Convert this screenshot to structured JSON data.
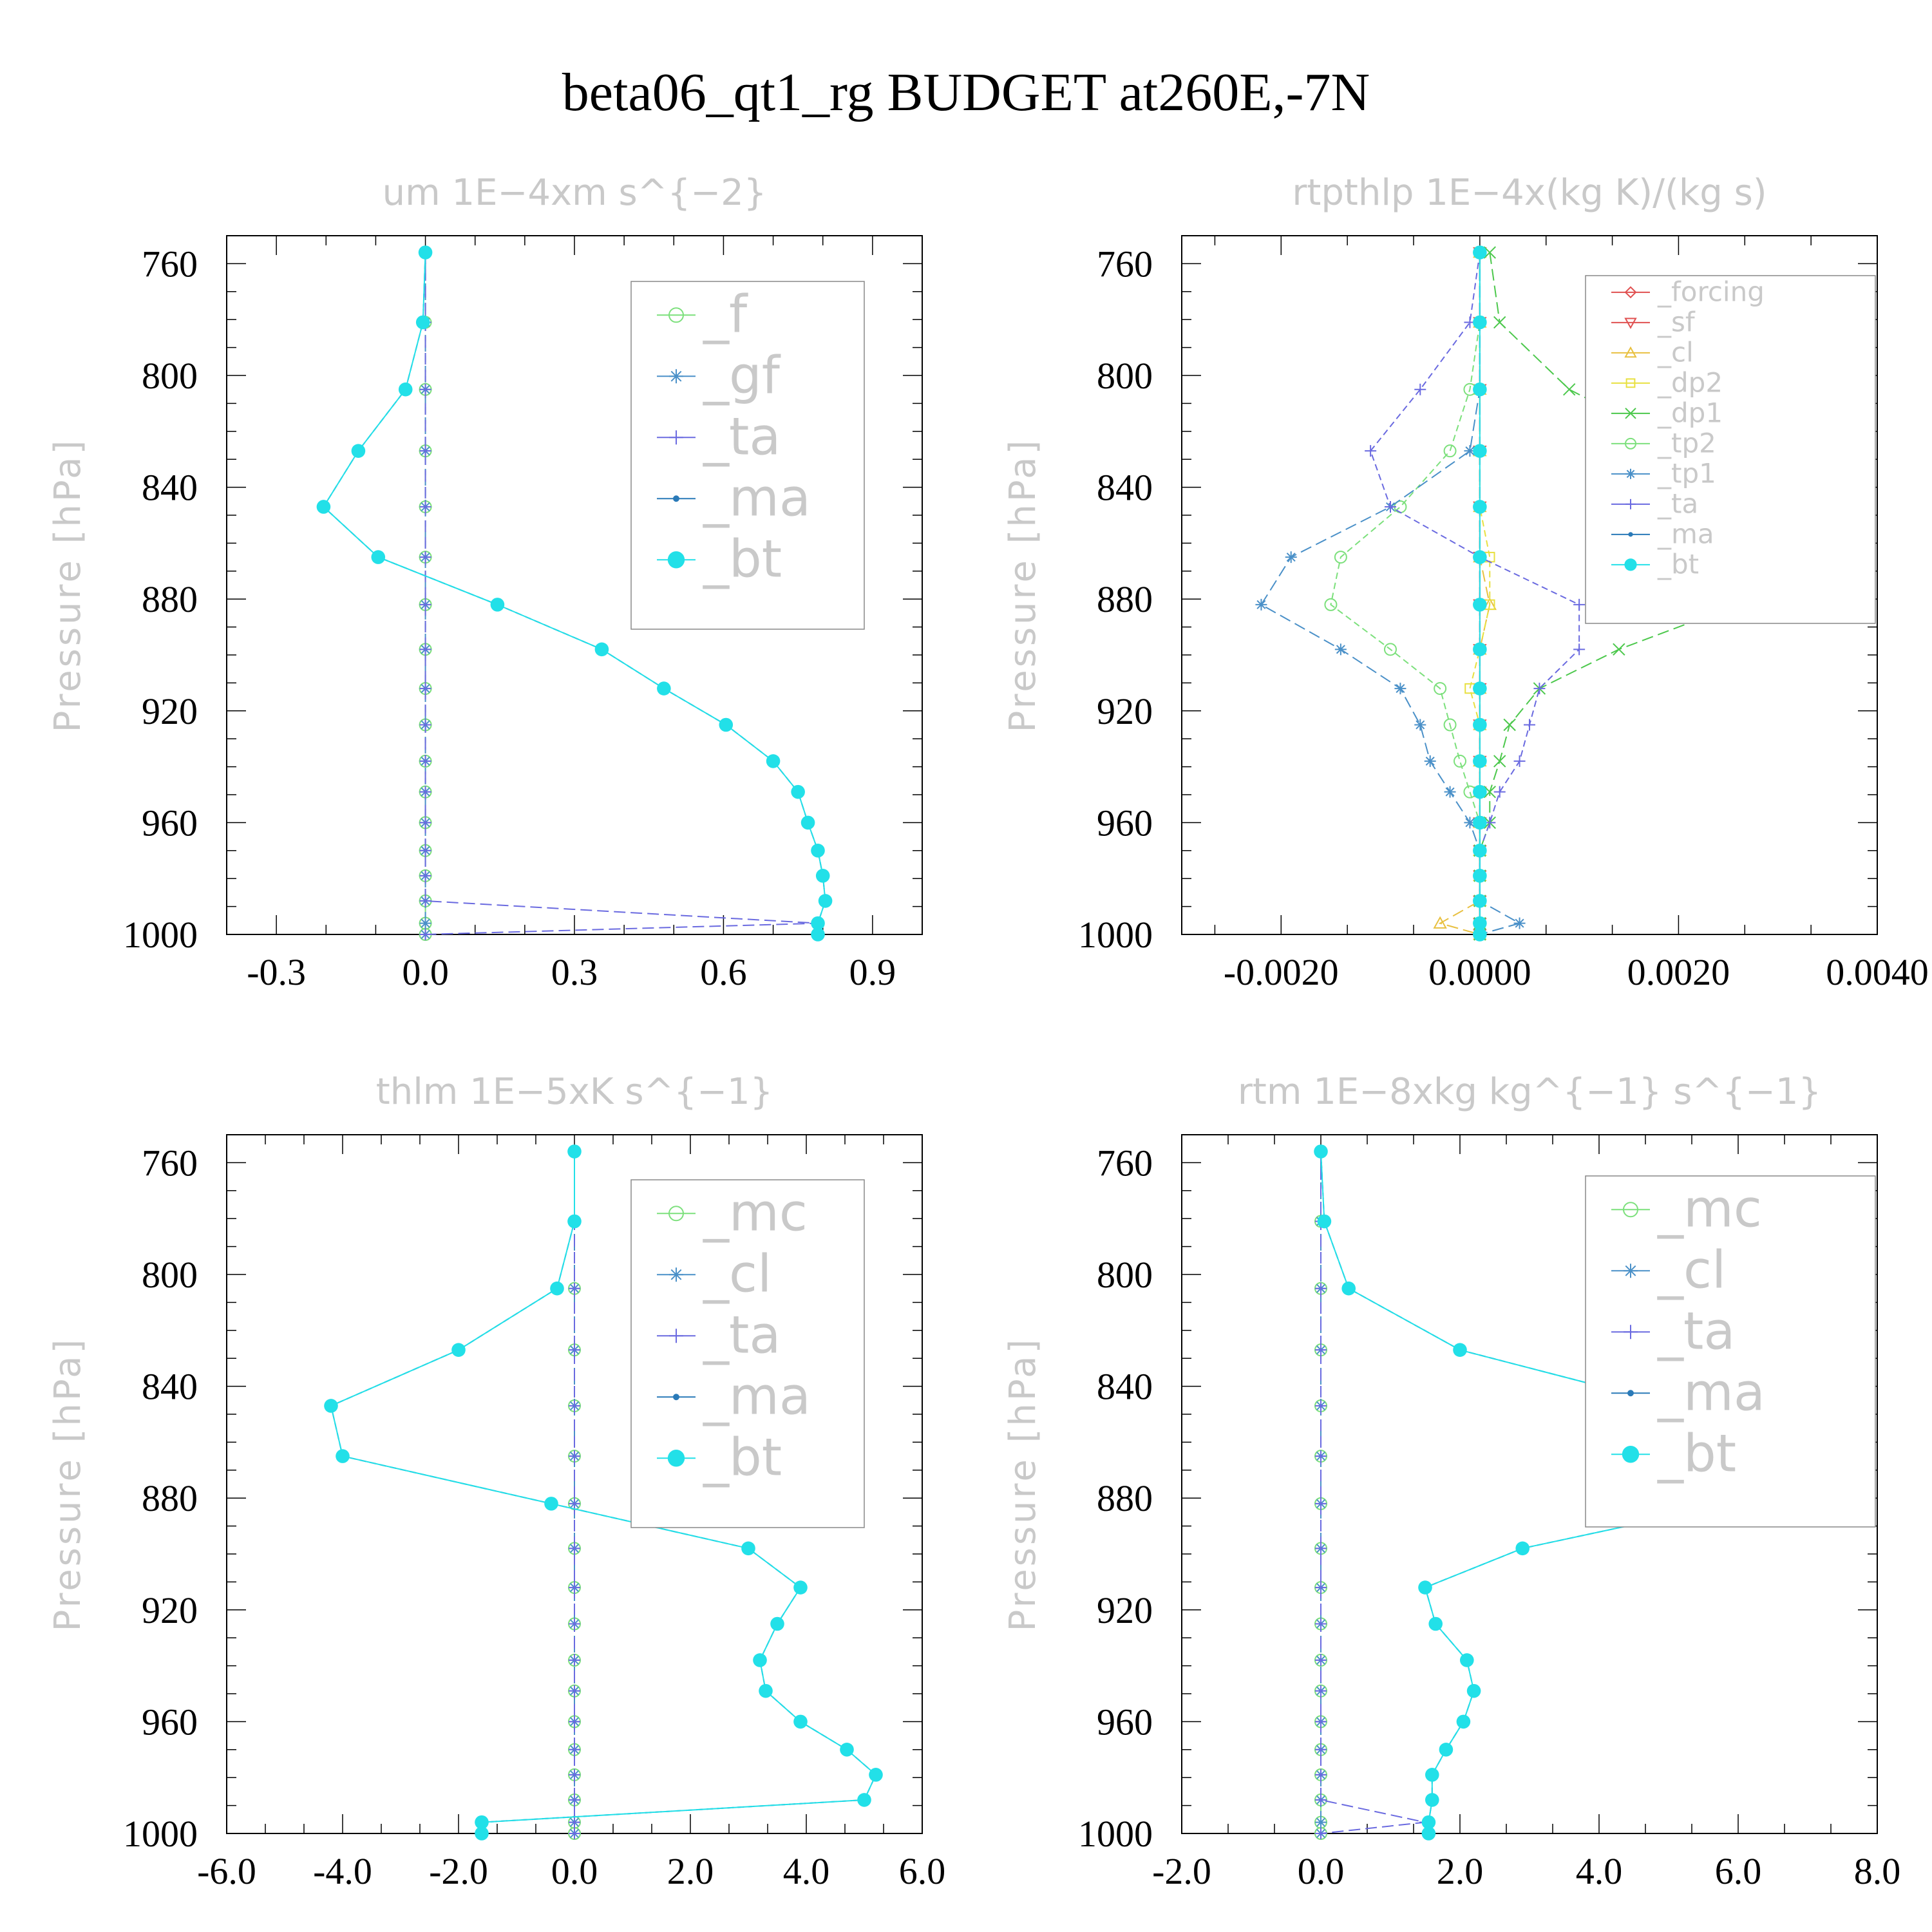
{
  "title": "beta06_qt1_rg  BUDGET at260E,-7N",
  "chart_data": [
    {
      "type": "line",
      "title": "um   1E−4xm s^{−2}",
      "ylabel": "Pressure [hPa]",
      "xlim": [
        -0.4,
        1.0
      ],
      "ylim": [
        1000,
        750
      ],
      "xticks": [
        -0.3,
        0.0,
        0.3,
        0.6,
        0.9
      ],
      "xtick_labels": [
        "-0.3",
        "0.0",
        "0.3",
        "0.6",
        "0.9"
      ],
      "yticks": [
        760,
        800,
        840,
        880,
        920,
        960,
        1000
      ],
      "ytick_labels": [
        "760",
        "800",
        "840",
        "880",
        "920",
        "960",
        "1000"
      ],
      "y": [
        756,
        781,
        805,
        827,
        847,
        865,
        882,
        898,
        912,
        925,
        938,
        949,
        960,
        970,
        979,
        988,
        996,
        1000
      ],
      "series": [
        {
          "name": "_f",
          "color": "#7ce07c",
          "marker": "circle",
          "values": [
            0,
            0,
            0,
            0,
            0,
            0,
            0,
            0,
            0,
            0,
            0,
            0,
            0,
            0,
            0,
            0,
            0,
            0
          ]
        },
        {
          "name": "_gf",
          "color": "#4a90c8",
          "marker": "star",
          "values": [
            0,
            0,
            0,
            0,
            0,
            0,
            0,
            0,
            0,
            0,
            0,
            0,
            0,
            0,
            0,
            0,
            0,
            0
          ]
        },
        {
          "name": "_ta",
          "color": "#6a6ae0",
          "marker": "plus",
          "values": [
            0,
            0,
            0,
            0,
            0,
            0,
            0,
            0,
            0,
            0,
            0,
            0,
            0,
            0,
            0,
            0,
            0.79,
            0
          ]
        },
        {
          "name": "_ma",
          "color": "#2a7ab8",
          "marker": "dot",
          "values": [
            0.0,
            -0.005,
            -0.04,
            -0.135,
            -0.205,
            -0.095,
            0.145,
            0.355,
            0.48,
            0.605,
            0.7,
            0.75,
            0.77,
            0.79,
            0.8,
            0.805,
            0.79,
            0.79
          ]
        },
        {
          "name": "_bt",
          "color": "#22e0e8",
          "marker": "filled",
          "values": [
            0.0,
            -0.005,
            -0.04,
            -0.135,
            -0.205,
            -0.095,
            0.145,
            0.355,
            0.48,
            0.605,
            0.7,
            0.75,
            0.77,
            0.79,
            0.8,
            0.805,
            0.79,
            0.79
          ]
        }
      ]
    },
    {
      "type": "line",
      "title": "rtpthlp   1E−4x(kg K)/(kg s)",
      "ylabel": "Pressure [hPa]",
      "xlim": [
        -0.003,
        0.004
      ],
      "ylim": [
        1000,
        750
      ],
      "xticks": [
        -0.002,
        0.0,
        0.002,
        0.004
      ],
      "xtick_labels": [
        "-0.0020",
        "0.0000",
        "0.0020",
        "0.0040"
      ],
      "yticks": [
        760,
        800,
        840,
        880,
        920,
        960,
        1000
      ],
      "ytick_labels": [
        "760",
        "800",
        "840",
        "880",
        "920",
        "960",
        "1000"
      ],
      "y": [
        756,
        781,
        805,
        827,
        847,
        865,
        882,
        898,
        912,
        925,
        938,
        949,
        960,
        970,
        979,
        988,
        996,
        1000
      ],
      "series": [
        {
          "name": "_forcing",
          "color": "#e05050",
          "marker": "diamond",
          "values": [
            0,
            0,
            0,
            0,
            0,
            0,
            0,
            0,
            0,
            0,
            0,
            0,
            0,
            0,
            0,
            0,
            0,
            0
          ]
        },
        {
          "name": "_sf",
          "color": "#e05050",
          "marker": "tridown",
          "values": [
            0,
            0,
            0,
            0,
            0,
            0,
            0,
            0,
            0,
            0,
            0,
            0,
            0,
            0,
            0,
            0,
            0,
            0
          ]
        },
        {
          "name": "_cl",
          "color": "#e8c040",
          "marker": "triup",
          "values": [
            0,
            0,
            0,
            0,
            0,
            0,
            0.0001,
            0,
            0,
            0,
            0,
            0,
            0,
            0,
            0,
            0,
            -0.0004,
            0
          ]
        },
        {
          "name": "_dp2",
          "color": "#e8e040",
          "marker": "square",
          "values": [
            0,
            0,
            0,
            0,
            0,
            0.0001,
            0.0001,
            0,
            -0.0001,
            0,
            0,
            0,
            0,
            0,
            0,
            0,
            0,
            0
          ]
        },
        {
          "name": "_dp1",
          "color": "#4cc84c",
          "marker": "cross",
          "values": [
            0.0001,
            0.0002,
            0.0009,
            0.0021,
            0.0027,
            0.0033,
            0.0026,
            0.0014,
            0.0006,
            0.0003,
            0.0002,
            0.0001,
            0.0001,
            0,
            0,
            0,
            0,
            0
          ]
        },
        {
          "name": "_tp2",
          "color": "#7ce07c",
          "marker": "circle",
          "values": [
            0,
            0,
            -0.0001,
            -0.0003,
            -0.0008,
            -0.0014,
            -0.0015,
            -0.0009,
            -0.0004,
            -0.0003,
            -0.0002,
            -0.0001,
            0,
            0,
            0,
            0,
            0,
            0
          ]
        },
        {
          "name": "_tp1",
          "color": "#4a90c8",
          "marker": "star",
          "values": [
            0,
            0,
            0,
            -0.0001,
            -0.0009,
            -0.0019,
            -0.0022,
            -0.0014,
            -0.0008,
            -0.0006,
            -0.0005,
            -0.0003,
            -0.0001,
            0,
            0,
            0,
            0.0004,
            0
          ]
        },
        {
          "name": "_ta",
          "color": "#6a6ae0",
          "marker": "plus",
          "values": [
            0,
            -0.0001,
            -0.0006,
            -0.0011,
            -0.0009,
            0,
            0.001,
            0.001,
            0.0006,
            0.0005,
            0.0004,
            0.0002,
            0.0001,
            0,
            0,
            0,
            0,
            0
          ]
        },
        {
          "name": "_ma",
          "color": "#2a7ab8",
          "marker": "dot",
          "values": [
            0,
            0,
            0,
            0,
            0,
            0,
            0,
            0,
            0,
            0,
            0,
            0,
            0,
            0,
            0,
            0,
            0,
            0
          ]
        },
        {
          "name": "_bt",
          "color": "#22e0e8",
          "marker": "filled",
          "values": [
            0,
            0,
            0,
            0,
            0,
            0,
            0,
            0,
            0,
            0,
            0,
            0,
            0,
            0,
            0,
            0,
            0,
            0
          ]
        }
      ]
    },
    {
      "type": "line",
      "title": "thlm   1E−5xK s^{−1}",
      "ylabel": "Pressure [hPa]",
      "xlim": [
        -6.0,
        6.0
      ],
      "ylim": [
        1000,
        750
      ],
      "xticks": [
        -6,
        -4,
        -2,
        0,
        2,
        4,
        6
      ],
      "xtick_labels": [
        "-6.0",
        "-4.0",
        "-2.0",
        "0.0",
        "2.0",
        "4.0",
        "6.0"
      ],
      "yticks": [
        760,
        800,
        840,
        880,
        920,
        960,
        1000
      ],
      "ytick_labels": [
        "760",
        "800",
        "840",
        "880",
        "920",
        "960",
        "1000"
      ],
      "y": [
        756,
        781,
        805,
        827,
        847,
        865,
        882,
        898,
        912,
        925,
        938,
        949,
        960,
        970,
        979,
        988,
        996,
        1000
      ],
      "series": [
        {
          "name": "_mc",
          "color": "#7ce07c",
          "marker": "circle",
          "values": [
            0,
            0,
            0,
            0,
            0,
            0,
            0,
            0,
            0,
            0,
            0,
            0,
            0,
            0,
            0,
            0,
            0,
            0
          ]
        },
        {
          "name": "_cl",
          "color": "#4a90c8",
          "marker": "star",
          "values": [
            0,
            0,
            0,
            0,
            0,
            0,
            0,
            0,
            0,
            0,
            0,
            0,
            0,
            0,
            0,
            0,
            0,
            0
          ]
        },
        {
          "name": "_ta",
          "color": "#6a6ae0",
          "marker": "plus",
          "values": [
            0,
            0,
            0,
            0,
            0,
            0,
            0,
            0,
            0,
            0,
            0,
            0,
            0,
            0,
            0,
            0,
            0,
            0
          ]
        },
        {
          "name": "_ma",
          "color": "#2a7ab8",
          "marker": "dot",
          "values": [
            0.0,
            0.0,
            -0.3,
            -2.0,
            -4.2,
            -4.0,
            -0.4,
            3.0,
            3.9,
            3.5,
            3.2,
            3.3,
            3.9,
            4.7,
            5.2,
            5.0,
            -1.6,
            -1.6
          ]
        },
        {
          "name": "_bt",
          "color": "#22e0e8",
          "marker": "filled",
          "values": [
            0.0,
            0.0,
            -0.3,
            -2.0,
            -4.2,
            -4.0,
            -0.4,
            3.0,
            3.9,
            3.5,
            3.2,
            3.3,
            3.9,
            4.7,
            5.2,
            5.0,
            -1.6,
            -1.6
          ]
        }
      ]
    },
    {
      "type": "line",
      "title": "rtm   1E−8xkg kg^{−1} s^{−1}",
      "ylabel": "Pressure [hPa]",
      "xlim": [
        -2.0,
        8.0
      ],
      "ylim": [
        1000,
        750
      ],
      "xticks": [
        -2,
        0,
        2,
        4,
        6,
        8
      ],
      "xtick_labels": [
        "-2.0",
        "0.0",
        "2.0",
        "4.0",
        "6.0",
        "8.0"
      ],
      "yticks": [
        760,
        800,
        840,
        880,
        920,
        960,
        1000
      ],
      "ytick_labels": [
        "760",
        "800",
        "840",
        "880",
        "920",
        "960",
        "1000"
      ],
      "y": [
        756,
        781,
        805,
        827,
        847,
        865,
        882,
        898,
        912,
        925,
        938,
        949,
        960,
        970,
        979,
        988,
        996,
        1000
      ],
      "series": [
        {
          "name": "_mc",
          "color": "#7ce07c",
          "marker": "circle",
          "values": [
            0,
            0,
            0,
            0,
            0,
            0,
            0,
            0,
            0,
            0,
            0,
            0,
            0,
            0,
            0,
            0,
            0,
            0
          ]
        },
        {
          "name": "_cl",
          "color": "#4a90c8",
          "marker": "star",
          "values": [
            0,
            0,
            0,
            0,
            0,
            0,
            0,
            0,
            0,
            0,
            0,
            0,
            0,
            0,
            0,
            0,
            0,
            0
          ]
        },
        {
          "name": "_ta",
          "color": "#6a6ae0",
          "marker": "plus",
          "values": [
            0,
            0,
            0,
            0,
            0,
            0,
            0,
            0,
            0,
            0,
            0,
            0,
            0,
            0,
            0,
            0,
            1.5,
            0
          ]
        },
        {
          "name": "_ma",
          "color": "#2a7ab8",
          "marker": "dot",
          "values": [
            0.0,
            0.05,
            0.4,
            2.0,
            5.1,
            7.1,
            5.9,
            2.9,
            1.5,
            1.65,
            2.1,
            2.2,
            2.05,
            1.8,
            1.6,
            1.6,
            1.55,
            1.55
          ]
        },
        {
          "name": "_bt",
          "color": "#22e0e8",
          "marker": "filled",
          "values": [
            0.0,
            0.05,
            0.4,
            2.0,
            5.1,
            7.1,
            5.9,
            2.9,
            1.5,
            1.65,
            2.1,
            2.2,
            2.05,
            1.8,
            1.6,
            1.6,
            1.55,
            1.55
          ]
        }
      ]
    }
  ]
}
